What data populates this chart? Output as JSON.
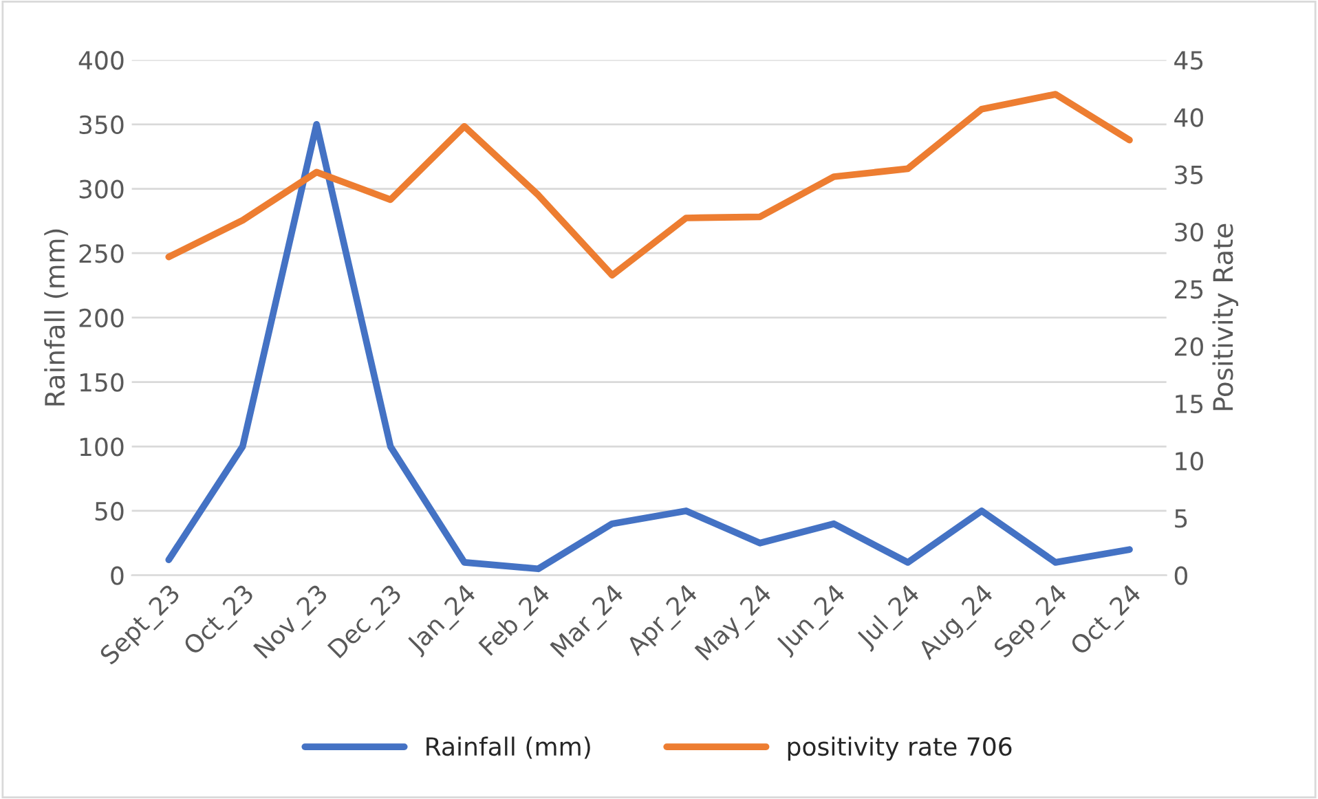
{
  "chart_data": {
    "type": "line",
    "ylabel": "Rainfall (mm)",
    "y2label": "Positivity Rate",
    "categories": [
      "Sept_23",
      "Oct_23",
      "Nov_23",
      "Dec_23",
      "Jan_24",
      "Feb_24",
      "Mar_24",
      "Apr_24",
      "May_24",
      "Jun_24",
      "Jul_24",
      "Aug_24",
      "Sep_24",
      "Oct_24"
    ],
    "series": [
      {
        "name": "Rainfall (mm)",
        "color": "#4472c4",
        "values": [
          12,
          100,
          350,
          100,
          10,
          5,
          40,
          50,
          25,
          40,
          10,
          50,
          10,
          20
        ]
      },
      {
        "name": "positivity rate 706",
        "color": "#ed7d31",
        "axis": "y2",
        "values": [
          27.8,
          31,
          35.2,
          32.8,
          39.2,
          33.2,
          26.2,
          31.2,
          31.3,
          34.8,
          35.5,
          40.7,
          42,
          38
        ]
      }
    ],
    "ylim": [
      0,
      400
    ],
    "yticks": [
      0,
      50,
      100,
      150,
      200,
      250,
      300,
      350,
      400
    ],
    "y2lim": [
      0,
      45
    ],
    "y2ticks": [
      0,
      5,
      10,
      15,
      20,
      25,
      30,
      35,
      40,
      45
    ],
    "grid": "y",
    "legend": "bottom",
    "marker": "none",
    "line_style": "solid"
  }
}
